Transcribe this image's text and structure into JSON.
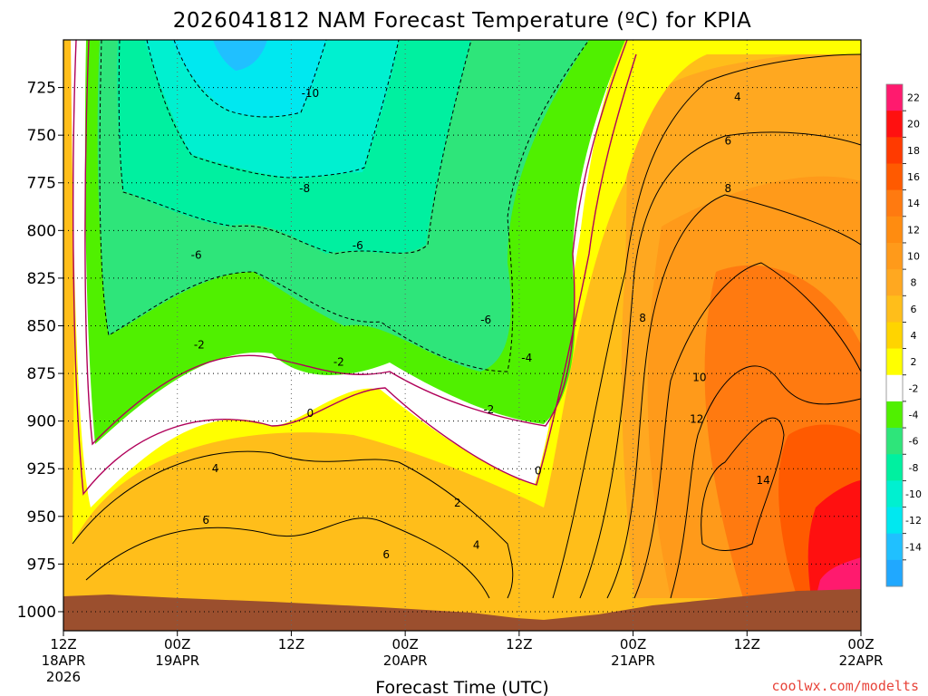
{
  "chart_data": {
    "type": "contour",
    "title": "2026041812 NAM Forecast Temperature (ºC) for KPIA",
    "xlabel": "Forecast Time (UTC)",
    "ylabel": "",
    "x_ticks": [
      {
        "line1": "12Z",
        "line2": "18APR",
        "line3": "2026"
      },
      {
        "line1": "00Z",
        "line2": "19APR",
        "line3": ""
      },
      {
        "line1": "12Z",
        "line2": "",
        "line3": ""
      },
      {
        "line1": "00Z",
        "line2": "20APR",
        "line3": ""
      },
      {
        "line1": "12Z",
        "line2": "",
        "line3": ""
      },
      {
        "line1": "00Z",
        "line2": "21APR",
        "line3": ""
      },
      {
        "line1": "12Z",
        "line2": "",
        "line3": ""
      },
      {
        "line1": "00Z",
        "line2": "22APR",
        "line3": ""
      }
    ],
    "x_hours": [
      0,
      12,
      24,
      36,
      48,
      60,
      72,
      84
    ],
    "y_ticks": [
      725,
      750,
      775,
      800,
      825,
      850,
      875,
      900,
      925,
      950,
      975,
      1000
    ],
    "y_range": [
      700,
      1010
    ],
    "x_range": [
      0,
      84
    ],
    "grid": true,
    "colorbar": {
      "ticks": [
        "22",
        "20",
        "18",
        "16",
        "14",
        "12",
        "10",
        "8",
        "6",
        "4",
        "2",
        "-2",
        "-4",
        "-6",
        "-8",
        "-10",
        "-12",
        "-14"
      ],
      "colors": [
        "#ff1a6e",
        "#ff1010",
        "#ff3a00",
        "#ff5a00",
        "#ff7a10",
        "#ff8c10",
        "#ff9a1a",
        "#ffa820",
        "#ffbe1a",
        "#ffd400",
        "#ffff00",
        "#ffffff",
        "#50f000",
        "#2ee57a",
        "#00f0a0",
        "#00f0d0",
        "#00e8f0",
        "#20c0ff",
        "#20a8ff"
      ]
    },
    "contour_labels": [
      {
        "t": 26.0,
        "p": 728,
        "text": "-10"
      },
      {
        "t": 25.4,
        "p": 778,
        "text": "-8"
      },
      {
        "t": 31.0,
        "p": 808,
        "text": "-6"
      },
      {
        "t": 14.0,
        "p": 813,
        "text": "-6"
      },
      {
        "t": 44.5,
        "p": 847,
        "text": "-6"
      },
      {
        "t": 48.8,
        "p": 867,
        "text": "-4"
      },
      {
        "t": 14.3,
        "p": 860,
        "text": "-2"
      },
      {
        "t": 29.0,
        "p": 869,
        "text": "-2"
      },
      {
        "t": 44.8,
        "p": 894,
        "text": "-2"
      },
      {
        "t": 26.0,
        "p": 896,
        "text": "0"
      },
      {
        "t": 50.0,
        "p": 926,
        "text": "0"
      },
      {
        "t": 16.0,
        "p": 925,
        "text": "4"
      },
      {
        "t": 41.5,
        "p": 943,
        "text": "2"
      },
      {
        "t": 43.5,
        "p": 965,
        "text": "4"
      },
      {
        "t": 15.0,
        "p": 952,
        "text": "6"
      },
      {
        "t": 34.0,
        "p": 970,
        "text": "6"
      },
      {
        "t": 71.0,
        "p": 730,
        "text": "4"
      },
      {
        "t": 70.0,
        "p": 753,
        "text": "6"
      },
      {
        "t": 70.0,
        "p": 778,
        "text": "8"
      },
      {
        "t": 61.0,
        "p": 846,
        "text": "8"
      },
      {
        "t": 67.0,
        "p": 877,
        "text": "10"
      },
      {
        "t": 66.7,
        "p": 899,
        "text": "12"
      },
      {
        "t": 73.7,
        "p": 931,
        "text": "14"
      }
    ]
  },
  "credit": "coolwx.com/modelts"
}
